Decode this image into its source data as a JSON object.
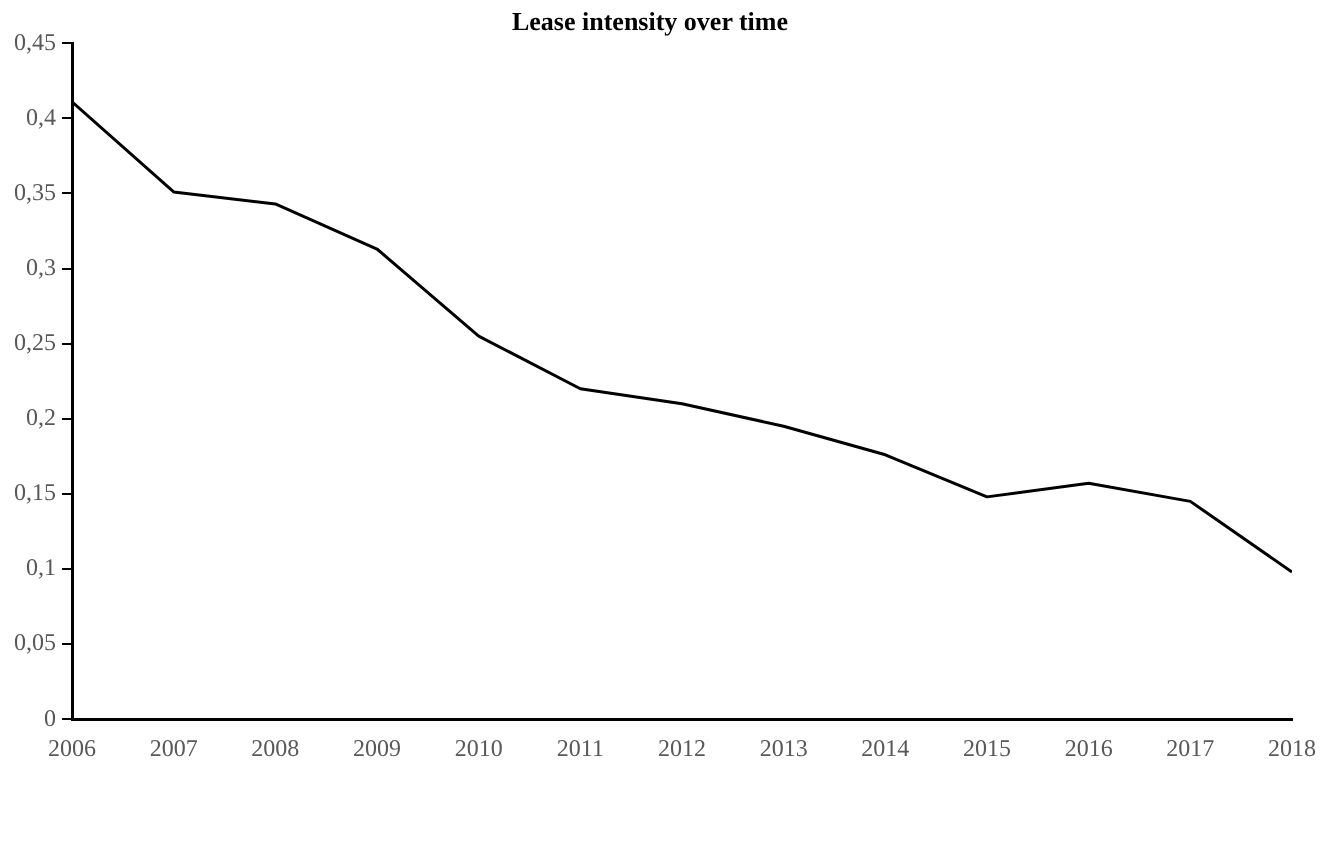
{
  "chart_data": {
    "type": "line",
    "title": "Lease intensity over time",
    "x": [
      2006,
      2007,
      2008,
      2009,
      2010,
      2011,
      2012,
      2013,
      2014,
      2015,
      2016,
      2017,
      2018
    ],
    "series": [
      {
        "color": "#000000",
        "values": [
          0.411,
          0.351,
          0.343,
          0.313,
          0.255,
          0.22,
          0.21,
          0.195,
          0.176,
          0.148,
          0.157,
          0.145,
          0.098
        ]
      }
    ],
    "xlim": [
      2006,
      2018
    ],
    "xticks": [
      2006,
      2007,
      2008,
      2009,
      2010,
      2011,
      2012,
      2013,
      2014,
      2015,
      2016,
      2017,
      2018
    ],
    "ylim": [
      0,
      0.45
    ],
    "yticks": [
      {
        "value": 0,
        "label": "0"
      },
      {
        "value": 0.05,
        "label": "0,05"
      },
      {
        "value": 0.1,
        "label": "0,1"
      },
      {
        "value": 0.15,
        "label": "0,15"
      },
      {
        "value": 0.2,
        "label": "0,2"
      },
      {
        "value": 0.25,
        "label": "0,25"
      },
      {
        "value": 0.3,
        "label": "0,3"
      },
      {
        "value": 0.35,
        "label": "0,35"
      },
      {
        "value": 0.4,
        "label": "0,4"
      },
      {
        "value": 0.45,
        "label": "0,45"
      }
    ],
    "grid": false,
    "legend": false,
    "marker": "none",
    "line_style": "solid"
  }
}
